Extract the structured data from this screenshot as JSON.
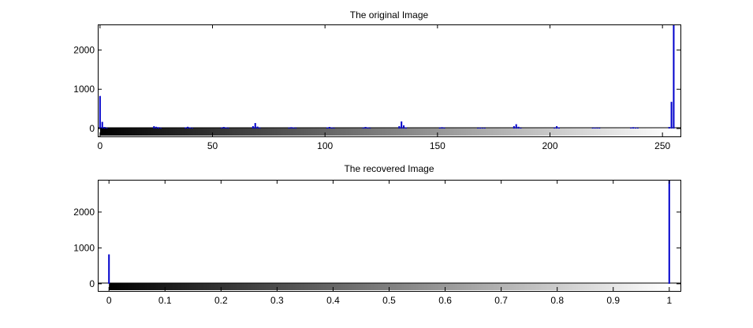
{
  "window": {
    "background": "#ffffff"
  },
  "chart_data": [
    {
      "type": "bar",
      "title": "The original Image",
      "xlabel": "",
      "ylabel": "",
      "xlim": [
        -1,
        258
      ],
      "ylim": [
        -200,
        2650
      ],
      "xticks": [
        0,
        50,
        100,
        150,
        200,
        250
      ],
      "xtick_labels": [
        "0",
        "50",
        "100",
        "150",
        "200",
        "250"
      ],
      "yticks": [
        0,
        1000,
        2000
      ],
      "ytick_labels": [
        "0",
        "1000",
        "2000"
      ],
      "grid": false,
      "colorbar": {
        "from": "#000000",
        "to": "#ffffff",
        "range": [
          0,
          255
        ]
      },
      "bar_color": "#0000cc",
      "x": [
        0,
        1,
        2,
        3,
        24,
        25,
        26,
        27,
        38,
        39,
        40,
        41,
        54,
        55,
        56,
        57,
        68,
        69,
        70,
        71,
        84,
        85,
        86,
        87,
        101,
        102,
        103,
        104,
        117,
        118,
        119,
        120,
        133,
        134,
        135,
        136,
        151,
        152,
        153,
        168,
        169,
        170,
        171,
        184,
        185,
        186,
        187,
        202,
        203,
        204,
        219,
        220,
        221,
        222,
        236,
        237,
        238,
        239,
        253,
        254,
        255
      ],
      "values": [
        830,
        170,
        40,
        20,
        60,
        45,
        35,
        20,
        30,
        45,
        30,
        20,
        25,
        40,
        30,
        20,
        60,
        140,
        50,
        25,
        25,
        35,
        30,
        20,
        30,
        40,
        30,
        20,
        25,
        40,
        30,
        20,
        60,
        180,
        80,
        30,
        25,
        35,
        25,
        20,
        25,
        20,
        20,
        60,
        110,
        45,
        20,
        25,
        60,
        30,
        20,
        25,
        20,
        20,
        25,
        35,
        25,
        20,
        40,
        680,
        2650
      ]
    },
    {
      "type": "bar",
      "title": "The recovered Image",
      "xlabel": "",
      "ylabel": "",
      "xlim": [
        -0.02,
        1.02
      ],
      "ylim": [
        -200,
        2900
      ],
      "xticks": [
        0,
        0.1,
        0.2,
        0.3,
        0.4,
        0.5,
        0.6,
        0.7,
        0.8,
        0.9,
        1
      ],
      "xtick_labels": [
        "0",
        "0.1",
        "0.2",
        "0.3",
        "0.4",
        "0.5",
        "0.6",
        "0.7",
        "0.8",
        "0.9",
        "1"
      ],
      "yticks": [
        0,
        1000,
        2000
      ],
      "ytick_labels": [
        "0",
        "1000",
        "2000"
      ],
      "grid": false,
      "colorbar": {
        "from": "#000000",
        "to": "#ffffff",
        "range": [
          0,
          1
        ]
      },
      "bar_color": "#0000cc",
      "x": [
        0,
        1
      ],
      "values": [
        820,
        2900
      ]
    }
  ]
}
